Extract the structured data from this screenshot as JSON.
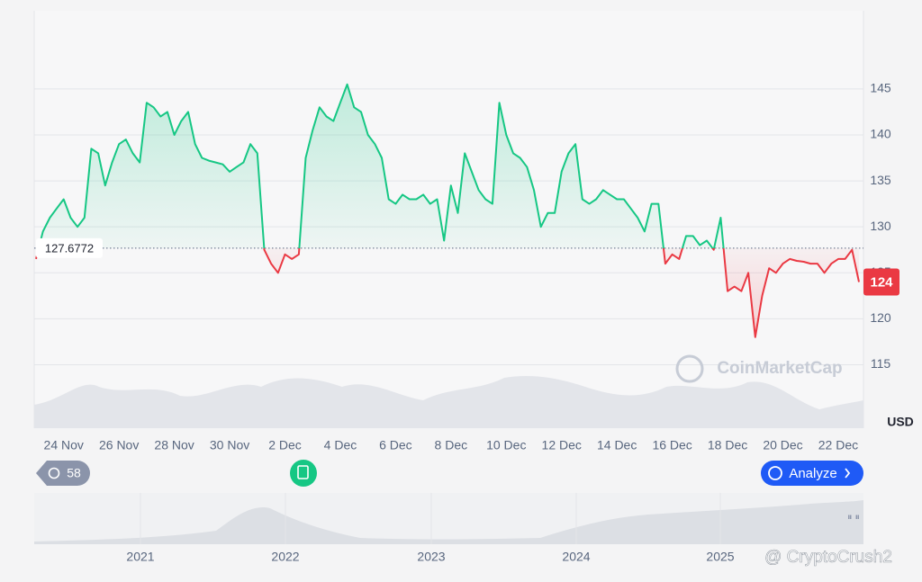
{
  "chart_data": {
    "type": "line",
    "categories": [
      null,
      null,
      null,
      null,
      "24 Nov",
      null,
      null,
      null,
      null,
      null,
      null,
      null,
      "26 Nov",
      null,
      null,
      null,
      null,
      null,
      null,
      null,
      "28 Nov",
      null,
      null,
      null,
      null,
      null,
      null,
      null,
      "30 Nov",
      null,
      null,
      null,
      null,
      null,
      null,
      null,
      "2 Dec",
      null,
      null,
      null,
      null,
      null,
      null,
      null,
      "4 Dec",
      null,
      null,
      null,
      null,
      null,
      null,
      null,
      "6 Dec",
      null,
      null,
      null,
      null,
      null,
      null,
      null,
      "8 Dec",
      null,
      null,
      null,
      null,
      null,
      null,
      null,
      "10 Dec",
      null,
      null,
      null,
      null,
      null,
      null,
      null,
      "12 Dec",
      null,
      null,
      null,
      null,
      null,
      null,
      null,
      "14 Dec",
      null,
      null,
      null,
      null,
      null,
      null,
      null,
      "16 Dec",
      null,
      null,
      null,
      null,
      null,
      null,
      null,
      "18 Dec",
      null,
      null,
      null,
      null,
      null,
      null,
      null,
      "20 Dec",
      null,
      null,
      null,
      null,
      null,
      null,
      null,
      "22 Dec",
      null,
      null,
      null
    ],
    "values": [
      126.5,
      129.5,
      131,
      132,
      133,
      131,
      130,
      131,
      138.5,
      138,
      134.5,
      137,
      139,
      139.5,
      138,
      137,
      143.5,
      143,
      142,
      142.5,
      140,
      141.5,
      142.5,
      139,
      137.5,
      137.2,
      137,
      136.8,
      136,
      136.5,
      137,
      139,
      138,
      127.5,
      126,
      125,
      127,
      126.5,
      127,
      137.5,
      140.5,
      143,
      142,
      141.5,
      143.5,
      145.5,
      143,
      142.5,
      140,
      139,
      137.5,
      133,
      132.5,
      133.5,
      133,
      133,
      133.5,
      132.5,
      133,
      128.5,
      134.5,
      131.5,
      138,
      136,
      134,
      133,
      132.5,
      143.5,
      140,
      138,
      137.5,
      136.5,
      134,
      130,
      131.5,
      131.5,
      136,
      138,
      139,
      133,
      132.5,
      133,
      134,
      133.5,
      133,
      133,
      132,
      131,
      129.5,
      132.5,
      132.5,
      126,
      127,
      126.5,
      129,
      129,
      128,
      128.5,
      127.5,
      131,
      123,
      123.5,
      123,
      125,
      118,
      122.5,
      125.5,
      125,
      126,
      126.5,
      126.3,
      126.2,
      126,
      126,
      125,
      126,
      126.5,
      126.5,
      127.5,
      124
    ],
    "colors": {
      "above": "#16c784",
      "below": "#ea3943"
    },
    "baseline": 127.6772,
    "ylim": [
      108.1,
      153.5
    ],
    "yticks": [
      115,
      120,
      125,
      130,
      135,
      140,
      145
    ],
    "y_axis_label": "USD",
    "grid": true
  },
  "ui": {
    "watermark": "CoinMarketCap",
    "history_count": "58",
    "analyze_button": "Analyze",
    "navigator_years": [
      "2021",
      "2022",
      "2023",
      "2024",
      "2025"
    ],
    "credit": "@ CryptoCrush2"
  }
}
